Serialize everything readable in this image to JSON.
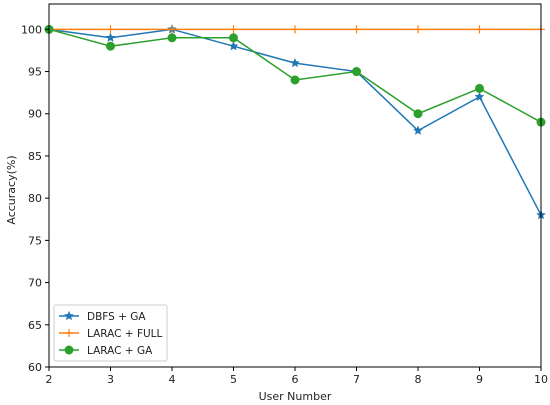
{
  "chart_data": {
    "type": "line",
    "title": "",
    "xlabel": "User Number",
    "ylabel": "Accuracy(%)",
    "x": [
      2,
      3,
      4,
      5,
      6,
      7,
      8,
      9,
      10
    ],
    "xlim": [
      2,
      10
    ],
    "ylim": [
      60,
      103
    ],
    "xticks": [
      2,
      3,
      4,
      5,
      6,
      7,
      8,
      9,
      10
    ],
    "yticks": [
      60,
      65,
      70,
      75,
      80,
      85,
      90,
      95,
      100
    ],
    "grid": false,
    "legend_position": "bottom-left",
    "series": [
      {
        "name": "DBFS + GA",
        "color": "#1f77b4",
        "marker": "star",
        "values": [
          100,
          99,
          100,
          98,
          96,
          95,
          88,
          92,
          78
        ]
      },
      {
        "name": "LARAC + FULL",
        "color": "#ff7f0e",
        "marker": "plus",
        "values": [
          100,
          100,
          100,
          100,
          100,
          100,
          100,
          100,
          100
        ]
      },
      {
        "name": "LARAC + GA",
        "color": "#2ca02c",
        "marker": "circle",
        "values": [
          100,
          98,
          99,
          99,
          94,
          95,
          90,
          93,
          89
        ]
      }
    ]
  }
}
